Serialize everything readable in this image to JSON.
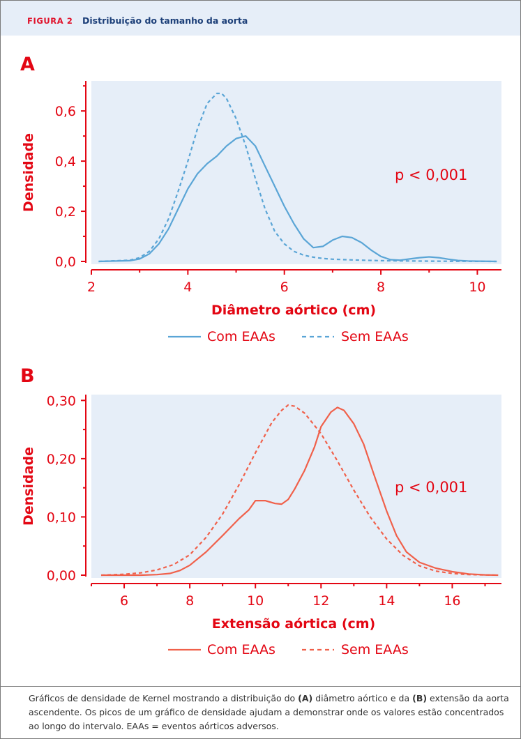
{
  "header": {
    "figure_label": "FIGURA 2",
    "title": "Distribuição do tamanho da aorta"
  },
  "panels": [
    {
      "letter": "A"
    },
    {
      "letter": "B"
    }
  ],
  "caption": {
    "text_1": "Gráficos de densidade de Kernel mostrando a distribuição do ",
    "bold_a": "(A)",
    "text_2": " diâmetro aórtico e da ",
    "bold_b": "(B)",
    "text_3": " extensão da aorta ascendente. Os picos de um gráfico de densidade ajudam a demonstrar onde os valores estão concentrados ao longo do intervalo. EAAs = eventos aórticos adversos."
  },
  "colors": {
    "panel_bg": "#e6eef8",
    "axis_red": "#e30613",
    "blue_series": "#5aa5d6",
    "red_series": "#f0604a",
    "header_bg": "#e6eef8",
    "title_blue": "#1c3f78"
  },
  "chart_data": [
    {
      "type": "line",
      "panel": "A",
      "xlabel": "Diâmetro aórtico (cm)",
      "ylabel": "Densidade",
      "xlim": [
        2,
        10.5
      ],
      "ylim": [
        0,
        0.72
      ],
      "xticks": [
        2,
        4,
        6,
        8,
        10
      ],
      "xtick_labels": [
        "2",
        "4",
        "6",
        "8",
        "10"
      ],
      "yticks": [
        0,
        0.2,
        0.4,
        0.6
      ],
      "ytick_labels": [
        "0,0",
        "0,2",
        "0,4",
        "0,6"
      ],
      "annotation": "p < 0,001",
      "grid": false,
      "legend_position": "bottom",
      "series": [
        {
          "name": "Com EAAs",
          "style": "solid",
          "color": "#5aa5d6",
          "x": [
            2.15,
            2.8,
            3.0,
            3.2,
            3.4,
            3.6,
            3.8,
            4.0,
            4.2,
            4.4,
            4.6,
            4.8,
            5.0,
            5.2,
            5.4,
            5.6,
            5.8,
            6.0,
            6.2,
            6.4,
            6.6,
            6.8,
            7.0,
            7.2,
            7.4,
            7.6,
            7.8,
            8.0,
            8.2,
            8.4,
            8.6,
            8.8,
            9.0,
            9.2,
            9.4,
            9.6,
            9.8,
            10.0,
            10.4
          ],
          "y": [
            0.0,
            0.003,
            0.01,
            0.03,
            0.07,
            0.13,
            0.21,
            0.29,
            0.35,
            0.39,
            0.42,
            0.46,
            0.49,
            0.5,
            0.46,
            0.38,
            0.3,
            0.22,
            0.15,
            0.09,
            0.055,
            0.06,
            0.085,
            0.1,
            0.095,
            0.075,
            0.045,
            0.02,
            0.007,
            0.005,
            0.01,
            0.015,
            0.018,
            0.015,
            0.009,
            0.004,
            0.002,
            0.001,
            0.0
          ]
        },
        {
          "name": "Sem EAAs",
          "style": "dashed",
          "color": "#5aa5d6",
          "x": [
            2.15,
            2.8,
            3.0,
            3.2,
            3.4,
            3.6,
            3.8,
            4.0,
            4.2,
            4.4,
            4.6,
            4.7,
            4.8,
            5.0,
            5.2,
            5.4,
            5.6,
            5.8,
            6.0,
            6.2,
            6.4,
            6.6,
            6.8,
            7.0,
            7.4,
            8.0,
            9.0,
            10.4
          ],
          "y": [
            0.0,
            0.005,
            0.015,
            0.04,
            0.09,
            0.17,
            0.28,
            0.4,
            0.53,
            0.63,
            0.67,
            0.67,
            0.65,
            0.57,
            0.46,
            0.33,
            0.21,
            0.12,
            0.07,
            0.04,
            0.025,
            0.017,
            0.012,
            0.009,
            0.006,
            0.003,
            0.001,
            0.0
          ]
        }
      ]
    },
    {
      "type": "line",
      "panel": "B",
      "xlabel": "Extensão aórtica (cm)",
      "ylabel": "Densidade",
      "xlim": [
        5,
        17.5
      ],
      "ylim": [
        0,
        0.31
      ],
      "xticks": [
        6,
        8,
        10,
        12,
        14,
        16
      ],
      "xtick_labels": [
        "6",
        "8",
        "10",
        "12",
        "14",
        "16"
      ],
      "yticks": [
        0,
        0.1,
        0.2,
        0.3
      ],
      "ytick_labels": [
        "0,00",
        "0,10",
        "0,20",
        "0,30"
      ],
      "annotation": "p < 0,001",
      "grid": false,
      "legend_position": "bottom",
      "series": [
        {
          "name": "Com EAAs",
          "style": "solid",
          "color": "#f0604a",
          "x": [
            5.3,
            6.5,
            7.0,
            7.4,
            7.7,
            8.0,
            8.5,
            9.0,
            9.5,
            9.8,
            10.0,
            10.3,
            10.6,
            10.8,
            11.0,
            11.2,
            11.5,
            11.8,
            12.0,
            12.3,
            12.5,
            12.7,
            13.0,
            13.3,
            13.6,
            14.0,
            14.3,
            14.6,
            15.0,
            15.5,
            16.0,
            16.5,
            17.0,
            17.4
          ],
          "y": [
            0.0,
            0.0,
            0.001,
            0.003,
            0.008,
            0.017,
            0.04,
            0.068,
            0.097,
            0.112,
            0.128,
            0.128,
            0.123,
            0.122,
            0.13,
            0.148,
            0.18,
            0.22,
            0.255,
            0.28,
            0.288,
            0.283,
            0.26,
            0.225,
            0.175,
            0.11,
            0.068,
            0.04,
            0.022,
            0.012,
            0.006,
            0.002,
            0.0005,
            0.0
          ]
        },
        {
          "name": "Sem EAAs",
          "style": "dashed",
          "color": "#f0604a",
          "x": [
            5.3,
            6.0,
            6.5,
            7.0,
            7.5,
            8.0,
            8.5,
            9.0,
            9.5,
            10.0,
            10.5,
            10.8,
            11.0,
            11.2,
            11.5,
            12.0,
            12.5,
            13.0,
            13.5,
            14.0,
            14.5,
            15.0,
            15.5,
            16.0,
            16.5,
            17.4
          ],
          "y": [
            0.0,
            0.0015,
            0.004,
            0.009,
            0.018,
            0.035,
            0.065,
            0.105,
            0.155,
            0.21,
            0.262,
            0.283,
            0.292,
            0.29,
            0.278,
            0.243,
            0.196,
            0.146,
            0.1,
            0.062,
            0.034,
            0.016,
            0.007,
            0.003,
            0.001,
            0.0
          ]
        }
      ]
    }
  ]
}
